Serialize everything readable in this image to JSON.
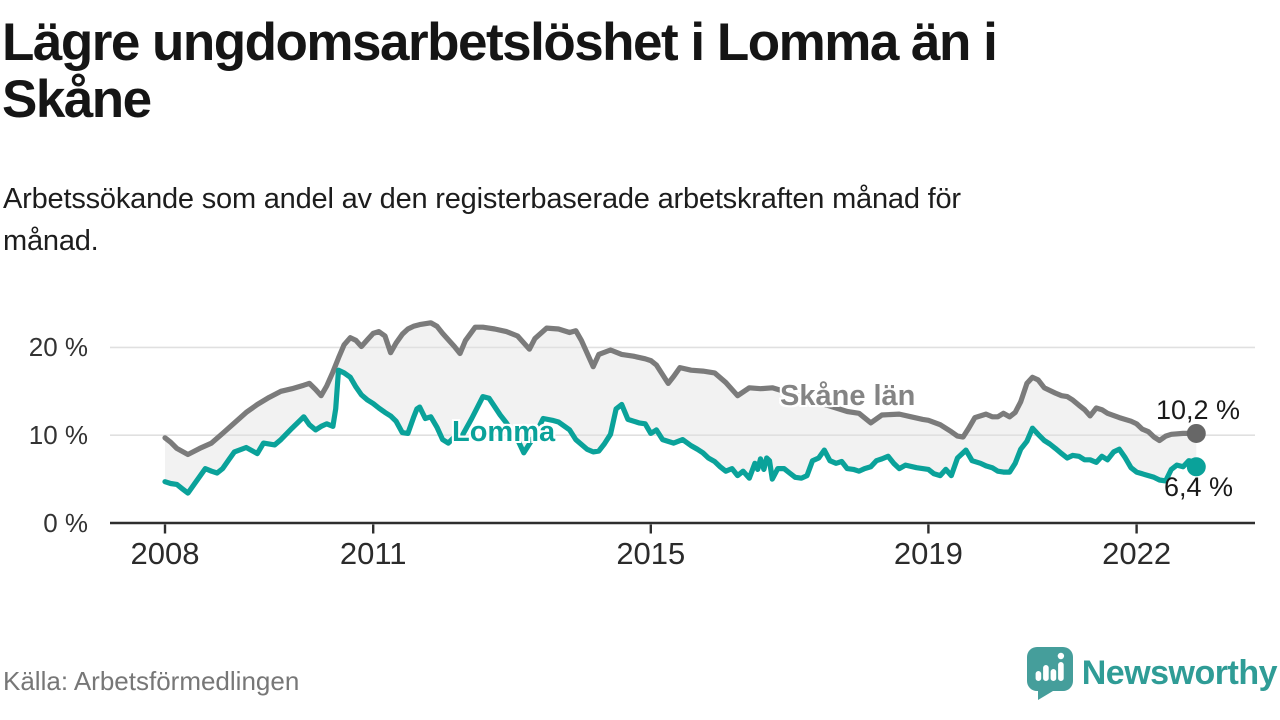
{
  "header": {
    "title": "Lägre ungdomsarbetslöshet i Lomma än i Skåne",
    "title_lines": [
      "Lägre ungdomsarbetslöshet i Lomma än i",
      "Skåne"
    ],
    "subtitle": "Arbetssökande som andel av den registerbaserade arbetskraften månad för månad.",
    "subtitle_lines": [
      "Arbetssökande som andel av den registerbaserade arbetskraften månad för",
      "månad."
    ]
  },
  "footer": {
    "source": "Källa: Arbetsförmedlingen",
    "brand": "Newsworthy",
    "brand_color": "#2f9c96"
  },
  "chart_data": {
    "type": "line",
    "title": "Lägre ungdomsarbetslöshet i Lomma än i Skåne",
    "xlabel": "",
    "ylabel": "",
    "ylim": [
      0,
      24
    ],
    "xlim": [
      2007.95,
      2023.1
    ],
    "grid": "horizontal",
    "legend_position": "inline-labels",
    "band_fill": "#f2f2f2",
    "gridline_color": "#e0e0e0",
    "axis_color": "#2e2e2e",
    "y_ticks": [
      {
        "v": 20,
        "label": "20 %"
      },
      {
        "v": 10,
        "label": "10 %"
      },
      {
        "v": 0,
        "label": "0 %"
      }
    ],
    "x_ticks": [
      {
        "v": 2008,
        "label": "2008"
      },
      {
        "v": 2011,
        "label": "2011"
      },
      {
        "v": 2015,
        "label": "2015"
      },
      {
        "v": 2019,
        "label": "2019"
      },
      {
        "v": 2022,
        "label": "2022"
      }
    ],
    "series": [
      {
        "name": "Skåne län",
        "color": "#7b7b7b",
        "dot_color": "#676767",
        "end_label": "10,2 %",
        "end_value": 10.2,
        "points": [
          [
            2008.0,
            9.7
          ],
          [
            2008.08,
            9.2
          ],
          [
            2008.17,
            8.5
          ],
          [
            2008.33,
            7.8
          ],
          [
            2008.5,
            8.5
          ],
          [
            2008.67,
            9.1
          ],
          [
            2008.83,
            10.2
          ],
          [
            2009.0,
            11.4
          ],
          [
            2009.17,
            12.6
          ],
          [
            2009.33,
            13.5
          ],
          [
            2009.5,
            14.3
          ],
          [
            2009.67,
            15.0
          ],
          [
            2009.83,
            15.3
          ],
          [
            2010.0,
            15.7
          ],
          [
            2010.08,
            15.9
          ],
          [
            2010.17,
            15.2
          ],
          [
            2010.25,
            14.5
          ],
          [
            2010.33,
            15.6
          ],
          [
            2010.42,
            17.2
          ],
          [
            2010.5,
            18.8
          ],
          [
            2010.58,
            20.3
          ],
          [
            2010.67,
            21.1
          ],
          [
            2010.75,
            20.8
          ],
          [
            2010.83,
            20.1
          ],
          [
            2010.92,
            20.9
          ],
          [
            2011.0,
            21.6
          ],
          [
            2011.08,
            21.8
          ],
          [
            2011.17,
            21.3
          ],
          [
            2011.25,
            19.4
          ],
          [
            2011.33,
            20.5
          ],
          [
            2011.42,
            21.5
          ],
          [
            2011.5,
            22.1
          ],
          [
            2011.58,
            22.4
          ],
          [
            2011.67,
            22.6
          ],
          [
            2011.83,
            22.8
          ],
          [
            2011.92,
            22.4
          ],
          [
            2012.0,
            21.6
          ],
          [
            2012.17,
            20.1
          ],
          [
            2012.25,
            19.3
          ],
          [
            2012.33,
            20.8
          ],
          [
            2012.47,
            22.3
          ],
          [
            2012.58,
            22.3
          ],
          [
            2012.75,
            22.1
          ],
          [
            2012.92,
            21.8
          ],
          [
            2013.08,
            21.3
          ],
          [
            2013.25,
            19.8
          ],
          [
            2013.33,
            21.0
          ],
          [
            2013.5,
            22.2
          ],
          [
            2013.67,
            22.1
          ],
          [
            2013.83,
            21.7
          ],
          [
            2013.92,
            21.9
          ],
          [
            2014.0,
            20.8
          ],
          [
            2014.17,
            17.8
          ],
          [
            2014.25,
            19.2
          ],
          [
            2014.42,
            19.7
          ],
          [
            2014.58,
            19.2
          ],
          [
            2014.75,
            19.0
          ],
          [
            2014.92,
            18.7
          ],
          [
            2015.0,
            18.5
          ],
          [
            2015.08,
            18.0
          ],
          [
            2015.25,
            15.9
          ],
          [
            2015.33,
            16.7
          ],
          [
            2015.42,
            17.7
          ],
          [
            2015.58,
            17.4
          ],
          [
            2015.75,
            17.3
          ],
          [
            2015.92,
            17.1
          ],
          [
            2016.08,
            16.0
          ],
          [
            2016.25,
            14.5
          ],
          [
            2016.42,
            15.4
          ],
          [
            2016.58,
            15.3
          ],
          [
            2016.75,
            15.4
          ],
          [
            2016.92,
            15.0
          ],
          [
            2017.17,
            14.4
          ],
          [
            2017.42,
            13.7
          ],
          [
            2017.67,
            13.1
          ],
          [
            2017.83,
            12.7
          ],
          [
            2018.0,
            12.5
          ],
          [
            2018.17,
            11.4
          ],
          [
            2018.33,
            12.3
          ],
          [
            2018.58,
            12.4
          ],
          [
            2018.75,
            12.1
          ],
          [
            2018.92,
            11.8
          ],
          [
            2019.0,
            11.7
          ],
          [
            2019.17,
            11.2
          ],
          [
            2019.33,
            10.4
          ],
          [
            2019.42,
            9.9
          ],
          [
            2019.5,
            9.8
          ],
          [
            2019.58,
            10.8
          ],
          [
            2019.67,
            12.0
          ],
          [
            2019.83,
            12.4
          ],
          [
            2019.92,
            12.1
          ],
          [
            2020.0,
            12.1
          ],
          [
            2020.08,
            12.5
          ],
          [
            2020.17,
            12.1
          ],
          [
            2020.25,
            12.6
          ],
          [
            2020.33,
            13.8
          ],
          [
            2020.42,
            15.9
          ],
          [
            2020.5,
            16.6
          ],
          [
            2020.58,
            16.3
          ],
          [
            2020.67,
            15.4
          ],
          [
            2020.83,
            14.8
          ],
          [
            2020.92,
            14.5
          ],
          [
            2021.0,
            14.4
          ],
          [
            2021.08,
            14.0
          ],
          [
            2021.17,
            13.4
          ],
          [
            2021.25,
            12.9
          ],
          [
            2021.33,
            12.2
          ],
          [
            2021.42,
            13.1
          ],
          [
            2021.5,
            12.9
          ],
          [
            2021.58,
            12.5
          ],
          [
            2021.75,
            12.0
          ],
          [
            2021.92,
            11.6
          ],
          [
            2022.0,
            11.3
          ],
          [
            2022.08,
            10.7
          ],
          [
            2022.17,
            10.4
          ],
          [
            2022.25,
            9.8
          ],
          [
            2022.33,
            9.4
          ],
          [
            2022.42,
            9.9
          ],
          [
            2022.5,
            10.1
          ],
          [
            2022.67,
            10.2
          ],
          [
            2022.86,
            10.2
          ]
        ]
      },
      {
        "name": "Lomma",
        "color": "#0aa29a",
        "dot_color": "#0aa29a",
        "end_label": "6,4 %",
        "end_value": 6.4,
        "points": [
          [
            2008.0,
            4.7
          ],
          [
            2008.08,
            4.5
          ],
          [
            2008.17,
            4.4
          ],
          [
            2008.25,
            3.9
          ],
          [
            2008.33,
            3.4
          ],
          [
            2008.42,
            4.4
          ],
          [
            2008.5,
            5.3
          ],
          [
            2008.58,
            6.2
          ],
          [
            2008.67,
            5.9
          ],
          [
            2008.75,
            5.7
          ],
          [
            2008.83,
            6.2
          ],
          [
            2008.92,
            7.2
          ],
          [
            2009.0,
            8.1
          ],
          [
            2009.17,
            8.6
          ],
          [
            2009.33,
            7.9
          ],
          [
            2009.42,
            9.1
          ],
          [
            2009.58,
            8.9
          ],
          [
            2009.67,
            9.5
          ],
          [
            2009.83,
            10.8
          ],
          [
            2010.0,
            12.1
          ],
          [
            2010.08,
            11.2
          ],
          [
            2010.17,
            10.6
          ],
          [
            2010.25,
            11.0
          ],
          [
            2010.33,
            11.3
          ],
          [
            2010.42,
            11.0
          ],
          [
            2010.46,
            13.0
          ],
          [
            2010.5,
            17.4
          ],
          [
            2010.58,
            17.1
          ],
          [
            2010.67,
            16.6
          ],
          [
            2010.75,
            15.5
          ],
          [
            2010.83,
            14.6
          ],
          [
            2010.92,
            14.0
          ],
          [
            2011.0,
            13.6
          ],
          [
            2011.08,
            13.1
          ],
          [
            2011.17,
            12.6
          ],
          [
            2011.25,
            12.2
          ],
          [
            2011.33,
            11.6
          ],
          [
            2011.42,
            10.3
          ],
          [
            2011.5,
            10.2
          ],
          [
            2011.58,
            12.0
          ],
          [
            2011.63,
            13.0
          ],
          [
            2011.67,
            13.2
          ],
          [
            2011.75,
            11.9
          ],
          [
            2011.83,
            12.1
          ],
          [
            2011.92,
            10.9
          ],
          [
            2012.0,
            9.5
          ],
          [
            2012.08,
            9.1
          ],
          [
            2012.17,
            9.8
          ],
          [
            2012.25,
            9.5
          ],
          [
            2012.42,
            11.9
          ],
          [
            2012.58,
            14.4
          ],
          [
            2012.67,
            14.2
          ],
          [
            2012.83,
            12.3
          ],
          [
            2012.92,
            11.4
          ],
          [
            2013.08,
            9.5
          ],
          [
            2013.17,
            8.0
          ],
          [
            2013.33,
            10.0
          ],
          [
            2013.45,
            11.9
          ],
          [
            2013.58,
            11.7
          ],
          [
            2013.67,
            11.5
          ],
          [
            2013.83,
            10.6
          ],
          [
            2013.92,
            9.5
          ],
          [
            2014.08,
            8.4
          ],
          [
            2014.17,
            8.1
          ],
          [
            2014.25,
            8.2
          ],
          [
            2014.33,
            9.0
          ],
          [
            2014.42,
            10.1
          ],
          [
            2014.5,
            13.0
          ],
          [
            2014.58,
            13.5
          ],
          [
            2014.67,
            11.8
          ],
          [
            2014.83,
            11.4
          ],
          [
            2014.92,
            11.3
          ],
          [
            2015.0,
            10.2
          ],
          [
            2015.08,
            10.6
          ],
          [
            2015.17,
            9.5
          ],
          [
            2015.33,
            9.1
          ],
          [
            2015.46,
            9.5
          ],
          [
            2015.58,
            8.8
          ],
          [
            2015.67,
            8.4
          ],
          [
            2015.75,
            8.0
          ],
          [
            2015.83,
            7.4
          ],
          [
            2015.92,
            7.0
          ],
          [
            2016.0,
            6.4
          ],
          [
            2016.08,
            5.9
          ],
          [
            2016.17,
            6.2
          ],
          [
            2016.25,
            5.4
          ],
          [
            2016.33,
            5.9
          ],
          [
            2016.42,
            5.1
          ],
          [
            2016.5,
            6.8
          ],
          [
            2016.54,
            6.1
          ],
          [
            2016.58,
            7.3
          ],
          [
            2016.63,
            6.1
          ],
          [
            2016.67,
            7.4
          ],
          [
            2016.71,
            7.1
          ],
          [
            2016.75,
            5.0
          ],
          [
            2016.83,
            6.2
          ],
          [
            2016.92,
            6.2
          ],
          [
            2017.0,
            5.7
          ],
          [
            2017.08,
            5.2
          ],
          [
            2017.17,
            5.1
          ],
          [
            2017.25,
            5.4
          ],
          [
            2017.33,
            7.1
          ],
          [
            2017.42,
            7.4
          ],
          [
            2017.5,
            8.3
          ],
          [
            2017.58,
            7.1
          ],
          [
            2017.67,
            6.8
          ],
          [
            2017.75,
            7.0
          ],
          [
            2017.83,
            6.2
          ],
          [
            2017.92,
            6.1
          ],
          [
            2018.0,
            5.9
          ],
          [
            2018.08,
            6.2
          ],
          [
            2018.17,
            6.4
          ],
          [
            2018.25,
            7.1
          ],
          [
            2018.33,
            7.3
          ],
          [
            2018.42,
            7.6
          ],
          [
            2018.5,
            6.8
          ],
          [
            2018.58,
            6.2
          ],
          [
            2018.67,
            6.6
          ],
          [
            2018.83,
            6.3
          ],
          [
            2019.0,
            6.1
          ],
          [
            2019.08,
            5.6
          ],
          [
            2019.17,
            5.4
          ],
          [
            2019.25,
            6.1
          ],
          [
            2019.33,
            5.4
          ],
          [
            2019.42,
            7.4
          ],
          [
            2019.5,
            8.0
          ],
          [
            2019.54,
            8.3
          ],
          [
            2019.63,
            7.1
          ],
          [
            2019.75,
            6.8
          ],
          [
            2019.83,
            6.5
          ],
          [
            2019.92,
            6.3
          ],
          [
            2020.0,
            5.9
          ],
          [
            2020.08,
            5.8
          ],
          [
            2020.17,
            5.8
          ],
          [
            2020.25,
            6.8
          ],
          [
            2020.33,
            8.4
          ],
          [
            2020.42,
            9.3
          ],
          [
            2020.5,
            10.8
          ],
          [
            2020.58,
            10.1
          ],
          [
            2020.67,
            9.4
          ],
          [
            2020.75,
            9.0
          ],
          [
            2020.83,
            8.5
          ],
          [
            2020.92,
            7.9
          ],
          [
            2021.0,
            7.4
          ],
          [
            2021.08,
            7.7
          ],
          [
            2021.17,
            7.6
          ],
          [
            2021.25,
            7.2
          ],
          [
            2021.33,
            7.2
          ],
          [
            2021.42,
            6.9
          ],
          [
            2021.5,
            7.6
          ],
          [
            2021.58,
            7.2
          ],
          [
            2021.67,
            8.1
          ],
          [
            2021.75,
            8.4
          ],
          [
            2021.83,
            7.5
          ],
          [
            2021.92,
            6.3
          ],
          [
            2022.0,
            5.8
          ],
          [
            2022.08,
            5.6
          ],
          [
            2022.17,
            5.4
          ],
          [
            2022.25,
            5.2
          ],
          [
            2022.33,
            4.9
          ],
          [
            2022.42,
            4.8
          ],
          [
            2022.5,
            6.1
          ],
          [
            2022.58,
            6.6
          ],
          [
            2022.67,
            6.4
          ],
          [
            2022.75,
            7.1
          ],
          [
            2022.81,
            7.0
          ],
          [
            2022.86,
            6.4
          ]
        ]
      }
    ]
  }
}
